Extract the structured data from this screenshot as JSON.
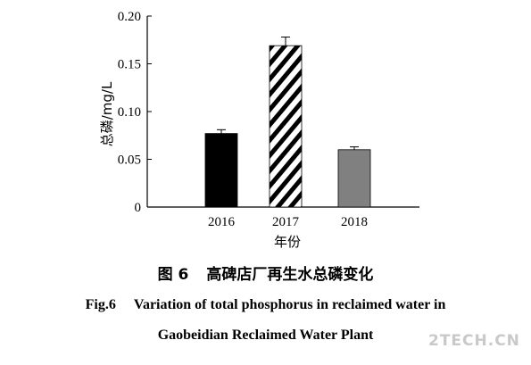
{
  "chart_data": {
    "type": "bar",
    "categories": [
      "2016",
      "2017",
      "2018"
    ],
    "values": [
      0.077,
      0.169,
      0.06
    ],
    "errors": [
      0.004,
      0.009,
      0.003
    ],
    "bar_colors": [
      "#000000",
      "hatched",
      "#808080"
    ],
    "xlabel": "年份",
    "ylabel": "总磷/mg/L",
    "ylim": [
      0,
      0.2
    ],
    "yticks": [
      "0",
      "0.05",
      "0.10",
      "0.15",
      "0.20"
    ],
    "grid": false
  },
  "caption": {
    "cn_label": "图 6",
    "cn_text": "高碑店厂再生水总磷变化",
    "en_label": "Fig.6",
    "en_line1": "Variation of total phosphorus in reclaimed water in",
    "en_line2": "Gaobeidian Reclaimed Water Plant"
  },
  "watermark": "2TECH.CN"
}
